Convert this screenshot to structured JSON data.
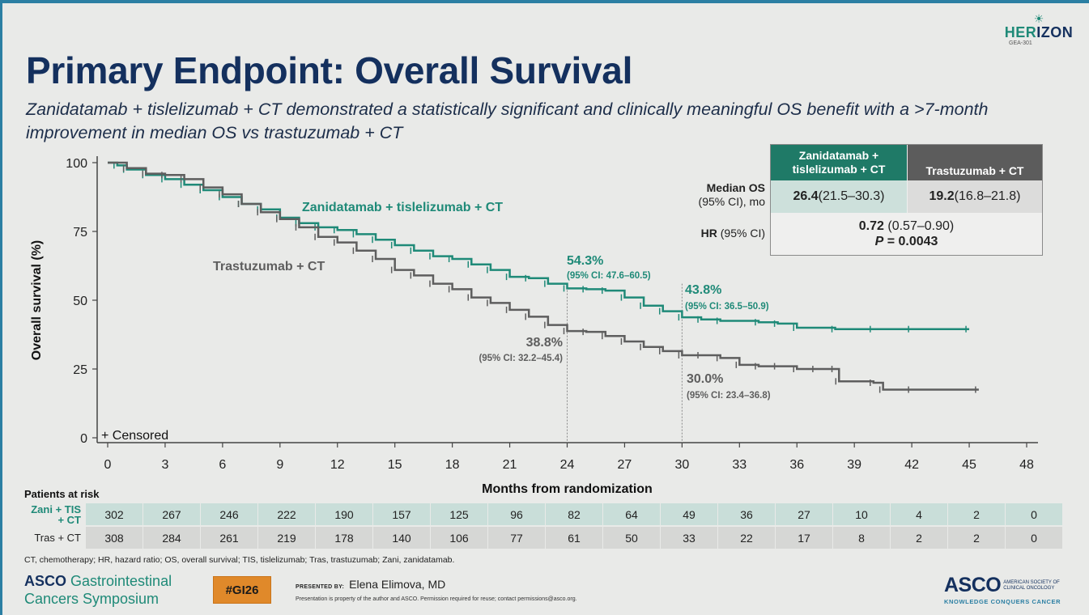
{
  "slide": {
    "title": "Primary Endpoint: Overall Survival",
    "subtitle": "Zanidatamab + tislelizumab + CT demonstrated a statistically significant and clinically meaningful OS benefit with a >7-month improvement in median OS vs trastuzumab + CT",
    "trial_logo": {
      "name_part1": "HER",
      "name_part2": "IZON",
      "trial_id": "GEA-301",
      "icon": "sunrise-icon"
    }
  },
  "stats_table": {
    "col1_header": "Zanidatamab + tislelizumab + CT",
    "col2_header": "Trastuzumab + CT",
    "row1_label_bold": "Median OS",
    "row1_label_rest": "(95% CI), mo",
    "row1_col1_bold": "26.4",
    "row1_col1_ci": " (21.5–30.3)",
    "row1_col2_bold": "19.2",
    "row1_col2_ci": " (16.8–21.8)",
    "row2_label_bold": "HR",
    "row2_label_rest": " (95% CI)",
    "hr_bold": "0.72",
    "hr_ci": " (0.57–0.90)",
    "p_label": "P",
    "p_value": " = 0.0043"
  },
  "chart_data": {
    "type": "line",
    "title": "",
    "xlabel": "Months from randomization",
    "ylabel": "Overall survival (%)",
    "xlim": [
      0,
      48
    ],
    "ylim": [
      0,
      100
    ],
    "xticks": [
      0,
      3,
      6,
      9,
      12,
      15,
      18,
      21,
      24,
      27,
      30,
      33,
      36,
      39,
      42,
      45,
      48
    ],
    "yticks": [
      0,
      25,
      50,
      75,
      100
    ],
    "grid": false,
    "legend": "+ Censored",
    "reference_lines_x": [
      24,
      30
    ],
    "series": [
      {
        "name": "Zanidatamab + tislelizumab + CT",
        "color": "#1f8a78",
        "step": true,
        "points": [
          [
            0,
            100
          ],
          [
            0.5,
            99
          ],
          [
            1,
            97.5
          ],
          [
            2,
            95.5
          ],
          [
            3,
            94
          ],
          [
            4,
            92
          ],
          [
            5,
            90
          ],
          [
            6,
            87.5
          ],
          [
            7,
            85
          ],
          [
            8,
            83
          ],
          [
            9,
            80
          ],
          [
            10,
            78
          ],
          [
            11,
            76.5
          ],
          [
            12,
            75.5
          ],
          [
            13,
            74
          ],
          [
            14,
            72
          ],
          [
            15,
            70
          ],
          [
            16,
            68
          ],
          [
            17,
            66
          ],
          [
            18,
            65
          ],
          [
            19,
            63
          ],
          [
            20,
            61
          ],
          [
            21,
            58.5
          ],
          [
            22,
            58
          ],
          [
            23,
            56
          ],
          [
            24,
            54.3
          ],
          [
            25,
            54
          ],
          [
            26,
            53.5
          ],
          [
            27,
            51
          ],
          [
            28,
            48
          ],
          [
            29,
            46
          ],
          [
            30,
            43.8
          ],
          [
            31,
            43
          ],
          [
            32,
            42.5
          ],
          [
            34,
            42
          ],
          [
            35,
            41.5
          ],
          [
            36,
            40
          ],
          [
            38,
            39.5
          ],
          [
            40,
            39.5
          ],
          [
            42,
            39.5
          ],
          [
            45,
            39.5
          ]
        ],
        "label": "Zanidatamab + tislelizumab + CT",
        "annotations": [
          {
            "x": 24,
            "value": "54.3%",
            "ci": "(95% CI: 47.6–60.5)"
          },
          {
            "x": 30,
            "value": "43.8%",
            "ci": "(95% CI: 36.5–50.9)"
          }
        ]
      },
      {
        "name": "Trastuzumab + CT",
        "color": "#5e5e5e",
        "step": true,
        "points": [
          [
            0,
            100
          ],
          [
            1,
            98
          ],
          [
            2,
            96
          ],
          [
            3,
            95.5
          ],
          [
            4,
            94
          ],
          [
            5,
            91
          ],
          [
            6,
            88.5
          ],
          [
            7,
            85
          ],
          [
            8,
            82
          ],
          [
            9,
            79.5
          ],
          [
            10,
            76.5
          ],
          [
            11,
            73
          ],
          [
            12,
            71
          ],
          [
            13,
            68
          ],
          [
            14,
            65
          ],
          [
            15,
            61
          ],
          [
            16,
            59
          ],
          [
            17,
            56
          ],
          [
            18,
            54
          ],
          [
            19,
            51
          ],
          [
            20,
            49
          ],
          [
            21,
            46.5
          ],
          [
            22,
            44
          ],
          [
            23,
            41
          ],
          [
            24,
            38.8
          ],
          [
            25,
            38.5
          ],
          [
            26,
            37
          ],
          [
            27,
            35
          ],
          [
            28,
            33
          ],
          [
            29,
            31.5
          ],
          [
            30,
            30
          ],
          [
            31,
            30
          ],
          [
            32,
            29
          ],
          [
            33,
            26.5
          ],
          [
            34,
            26
          ],
          [
            35,
            26
          ],
          [
            36,
            25
          ],
          [
            37,
            25
          ],
          [
            38,
            25
          ],
          [
            38.2,
            20.5
          ],
          [
            40,
            20
          ],
          [
            40.5,
            17.5
          ],
          [
            42,
            17.5
          ],
          [
            45.5,
            17.5
          ]
        ],
        "label": "Trastuzumab + CT",
        "annotations": [
          {
            "x": 24,
            "value": "38.8%",
            "ci": "(95% CI: 32.2–45.4)"
          },
          {
            "x": 30,
            "value": "30.0%",
            "ci": "(95% CI: 23.4–36.8)"
          }
        ]
      }
    ],
    "censored_legend_label": "Censored"
  },
  "risk_table": {
    "title": "Patients at risk",
    "rows": [
      {
        "label_line1": "Zani + TIS",
        "label_line2": "+ CT",
        "values": [
          "302",
          "267",
          "246",
          "222",
          "190",
          "157",
          "125",
          "96",
          "82",
          "64",
          "49",
          "36",
          "27",
          "10",
          "4",
          "2",
          "0"
        ]
      },
      {
        "label_line1": "Tras + CT",
        "label_line2": "",
        "values": [
          "308",
          "284",
          "261",
          "219",
          "178",
          "140",
          "106",
          "77",
          "61",
          "50",
          "33",
          "22",
          "17",
          "8",
          "2",
          "2",
          "0"
        ]
      }
    ]
  },
  "footer": {
    "abbreviations": "CT, chemotherapy; HR, hazard ratio; OS, overall survival; TIS, tislelizumab; Tras, trastuzumab; Zani, zanidatamab.",
    "meeting_line1_bold": "ASCO",
    "meeting_line1_rest": " Gastrointestinal",
    "meeting_line2": "Cancers Symposium",
    "hashtag": "#GI26",
    "presented_by_label": "PRESENTED BY:",
    "presenter": "Elena Elimova, MD",
    "property_notice": "Presentation is property of the author and ASCO. Permission required for reuse; contact permissions@asco.org.",
    "asco_big": "ASCO",
    "asco_small_1": "AMERICAN SOCIETY OF",
    "asco_small_2": "CLINICAL ONCOLOGY",
    "asco_tagline": "KNOWLEDGE CONQUERS CANCER"
  }
}
